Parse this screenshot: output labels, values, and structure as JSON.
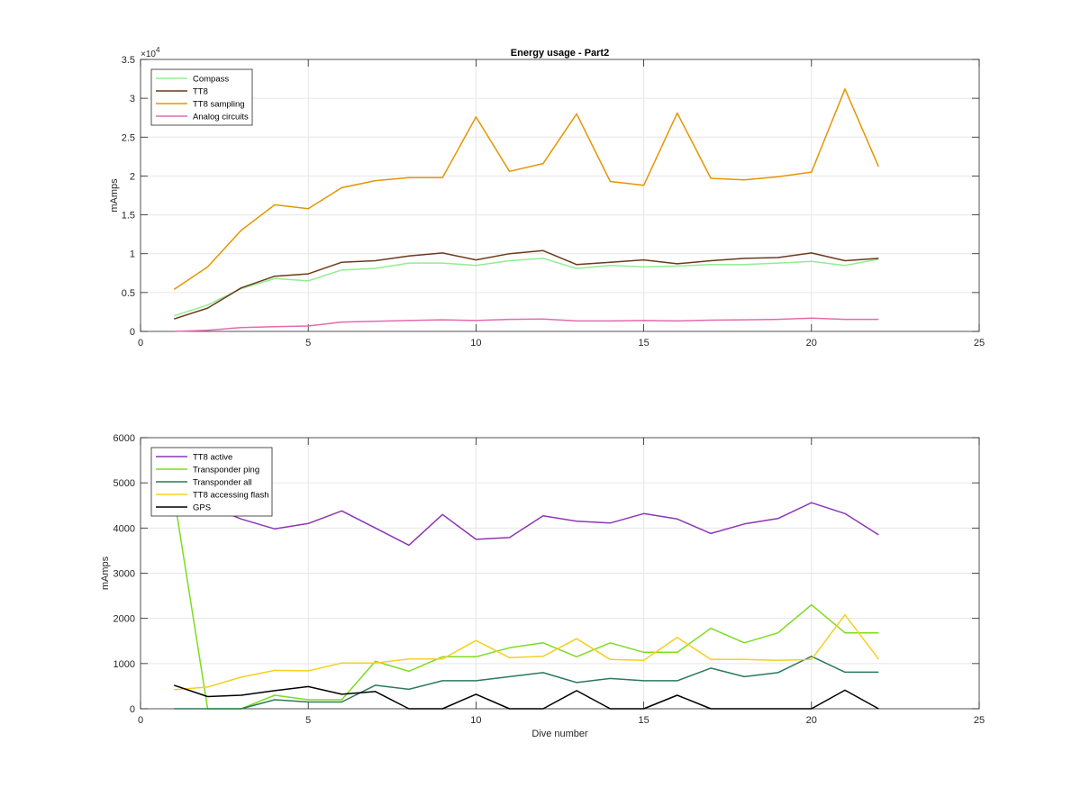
{
  "chart_data": [
    {
      "type": "line",
      "title": "Energy usage - Part2",
      "xlabel": "",
      "ylabel": "mAmps",
      "exponent_label": "×10",
      "exponent_power": "4",
      "xlim": [
        0,
        25
      ],
      "ylim": [
        0,
        35000
      ],
      "xticks": [
        0,
        5,
        10,
        15,
        20,
        25
      ],
      "yticks": [
        0,
        5000,
        10000,
        15000,
        20000,
        25000,
        30000,
        35000
      ],
      "ytick_labels": [
        "0",
        "0.5",
        "1",
        "1.5",
        "2",
        "2.5",
        "3",
        "3.5"
      ],
      "grid": true,
      "legend": "top-left",
      "x": [
        1,
        2,
        3,
        4,
        5,
        6,
        7,
        8,
        9,
        10,
        11,
        12,
        13,
        14,
        15,
        16,
        17,
        18,
        19,
        20,
        21,
        22
      ],
      "series": [
        {
          "name": "Compass",
          "color": "#90ee90",
          "values": [
            2000,
            3400,
            5500,
            6800,
            6500,
            7900,
            8100,
            8800,
            8800,
            8500,
            9100,
            9400,
            8100,
            8500,
            8300,
            8400,
            8600,
            8600,
            8800,
            9000,
            8500,
            9300
          ]
        },
        {
          "name": "TT8",
          "color": "#6b3a1a",
          "values": [
            1600,
            3000,
            5600,
            7100,
            7400,
            8900,
            9100,
            9700,
            10100,
            9200,
            10000,
            10400,
            8600,
            8900,
            9200,
            8700,
            9100,
            9400,
            9500,
            10100,
            9100,
            9400
          ]
        },
        {
          "name": "TT8 sampling",
          "color": "#e69500",
          "values": [
            5400,
            8300,
            13000,
            16300,
            15800,
            18500,
            19400,
            19800,
            19800,
            27600,
            20600,
            21600,
            28000,
            19300,
            18800,
            28100,
            19700,
            19500,
            19900,
            20500,
            31200,
            21200
          ]
        },
        {
          "name": "Analog circuits",
          "color": "#e26bb0",
          "values": [
            0,
            150,
            500,
            600,
            700,
            1200,
            1300,
            1400,
            1500,
            1400,
            1550,
            1600,
            1350,
            1350,
            1400,
            1350,
            1450,
            1500,
            1550,
            1700,
            1550,
            1550
          ]
        }
      ]
    },
    {
      "type": "line",
      "title": "",
      "xlabel": "Dive number",
      "ylabel": "mAmps",
      "xlim": [
        0,
        25
      ],
      "ylim": [
        0,
        6000
      ],
      "xticks": [
        0,
        5,
        10,
        15,
        20,
        25
      ],
      "yticks": [
        0,
        1000,
        2000,
        3000,
        4000,
        5000,
        6000
      ],
      "ytick_labels": [
        "0",
        "1000",
        "2000",
        "3000",
        "4000",
        "5000",
        "6000"
      ],
      "grid": true,
      "legend": "top-left",
      "x": [
        1,
        2,
        3,
        4,
        5,
        6,
        7,
        8,
        9,
        10,
        11,
        12,
        13,
        14,
        15,
        16,
        17,
        18,
        19,
        20,
        21,
        22
      ],
      "series": [
        {
          "name": "TT8 active",
          "color": "#8e35b5",
          "values": [
            4900,
            4500,
            4200,
            3980,
            4100,
            4380,
            4000,
            3620,
            4300,
            3750,
            3790,
            4270,
            4150,
            4110,
            4320,
            4200,
            3880,
            4090,
            4210,
            4560,
            4320,
            3850
          ]
        },
        {
          "name": "Transponder ping",
          "color": "#7ddc1f",
          "values": [
            4700,
            0,
            0,
            300,
            200,
            200,
            1050,
            830,
            1150,
            1150,
            1350,
            1460,
            1150,
            1460,
            1250,
            1250,
            1780,
            1460,
            1680,
            2300,
            1680,
            1680
          ]
        },
        {
          "name": "Transponder all",
          "color": "#2a7a5a",
          "values": [
            0,
            0,
            0,
            200,
            150,
            150,
            520,
            430,
            620,
            620,
            710,
            800,
            580,
            670,
            620,
            620,
            900,
            710,
            800,
            1160,
            810,
            810
          ]
        },
        {
          "name": "TT8 accessing flash",
          "color": "#f5d020",
          "values": [
            420,
            480,
            700,
            850,
            840,
            1010,
            1010,
            1100,
            1100,
            1510,
            1130,
            1160,
            1550,
            1090,
            1070,
            1580,
            1090,
            1090,
            1070,
            1090,
            2080,
            1100
          ]
        },
        {
          "name": "GPS",
          "color": "#000000",
          "values": [
            520,
            270,
            300,
            400,
            490,
            320,
            380,
            0,
            0,
            320,
            0,
            0,
            400,
            0,
            0,
            300,
            0,
            0,
            0,
            0,
            410,
            0
          ]
        }
      ]
    }
  ]
}
